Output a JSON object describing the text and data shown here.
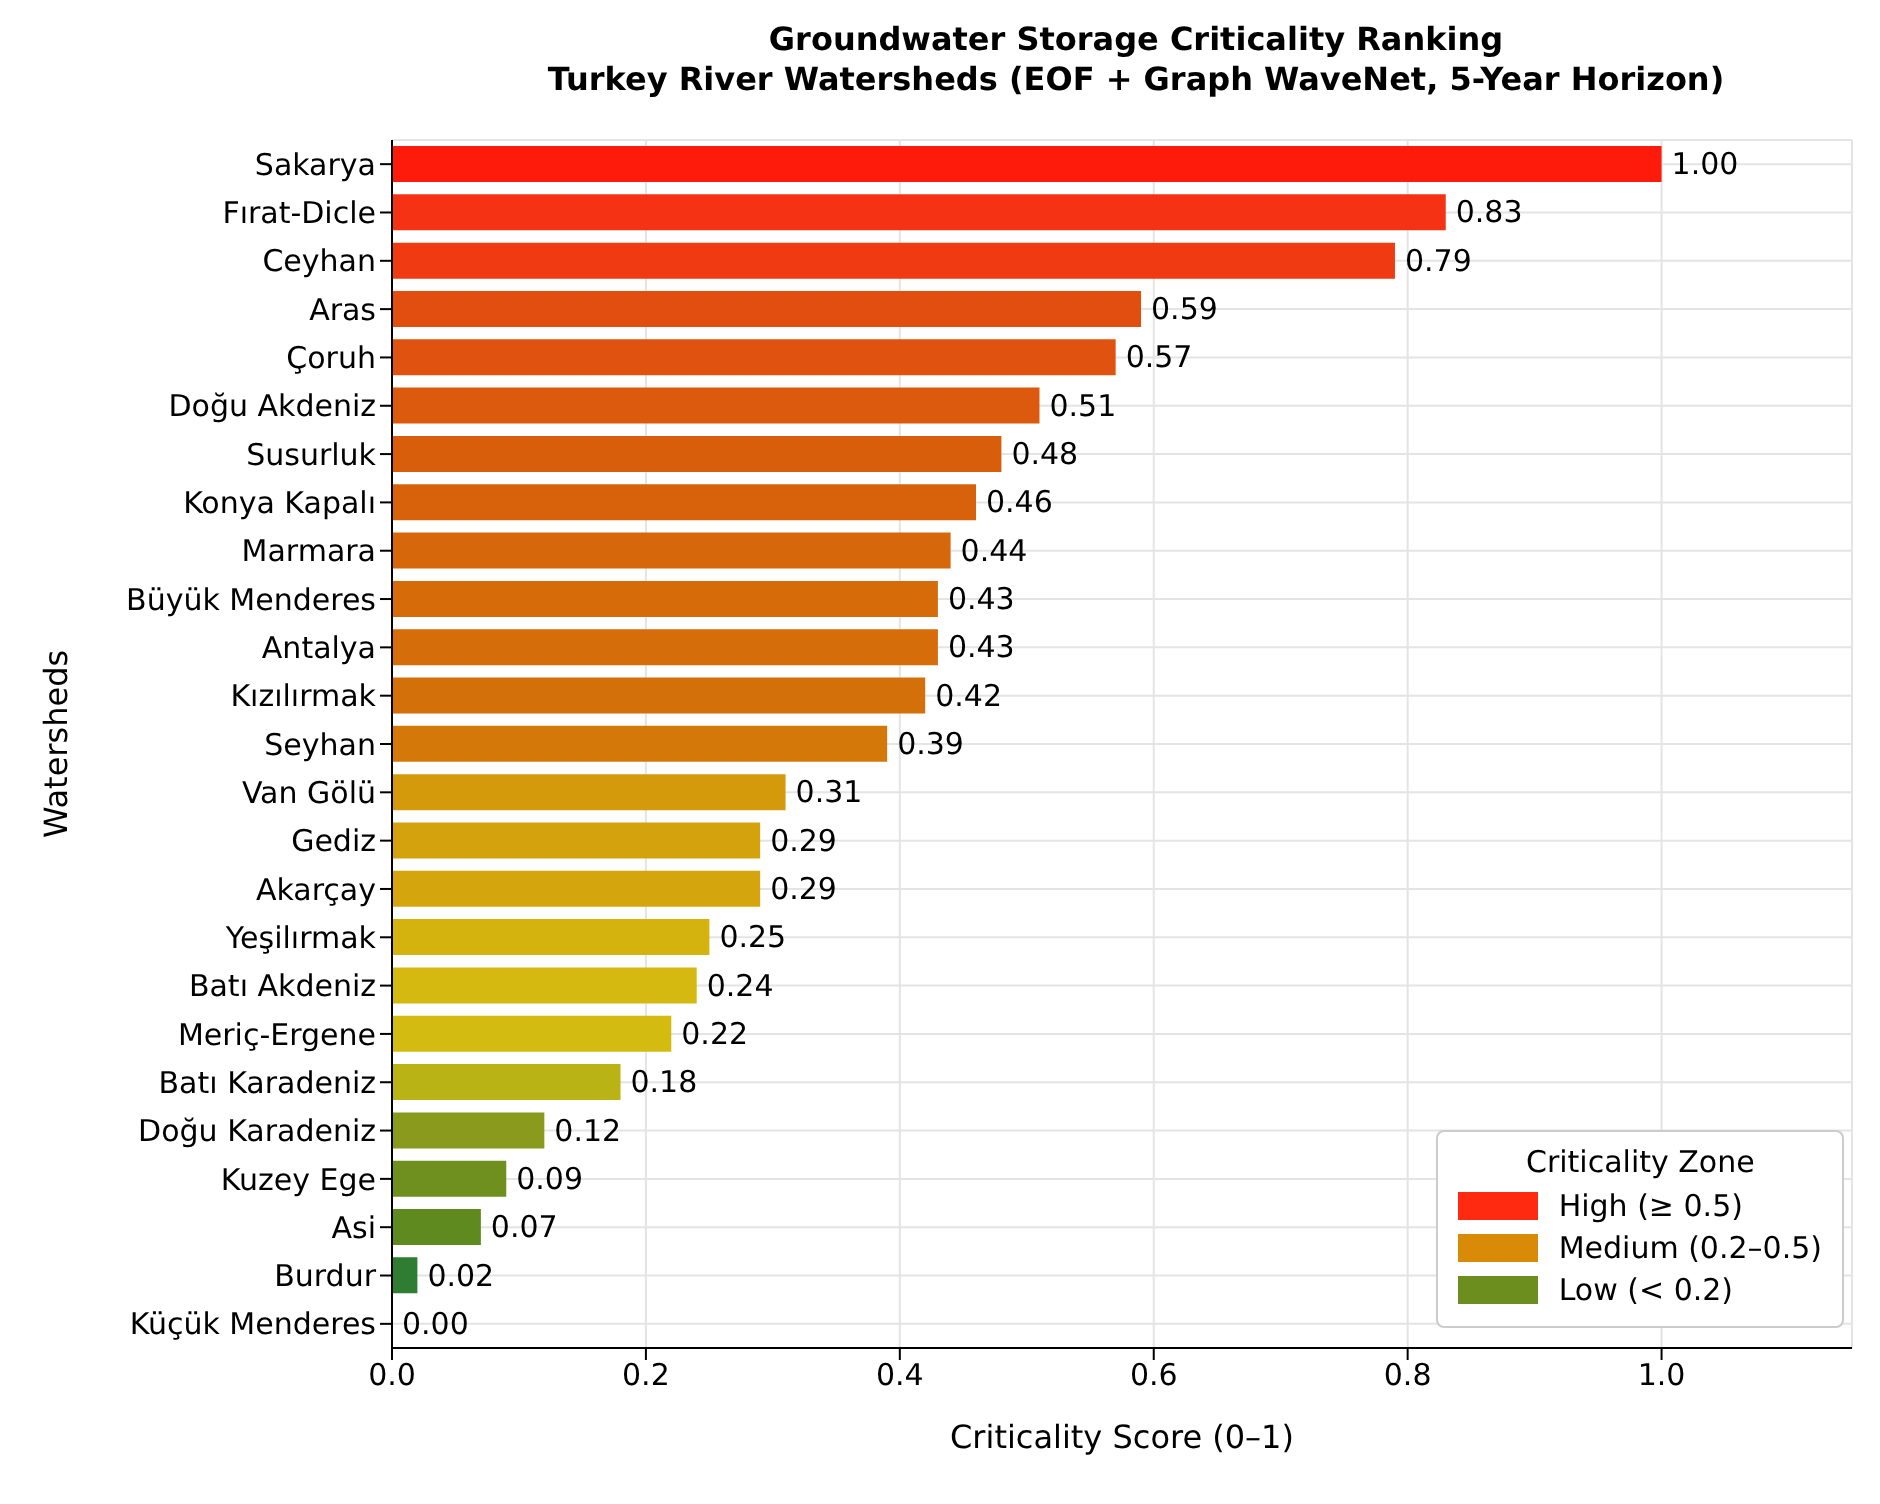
{
  "chart_data": {
    "type": "bar",
    "orientation": "horizontal",
    "stacked": true,
    "title": "Groundwater Storage Criticality Ranking",
    "subtitle": "Turkey River Watersheds (EOF + Graph WaveNet, 5-Year Horizon)",
    "xlabel": "Criticality Score (0–1)",
    "ylabel": "Watersheds",
    "legend_title": "Criticality Zone",
    "legend": "bottom right",
    "grid": true,
    "categories": [
      "Sakarya",
      "Fırat-Dicle",
      "Ceyhan",
      "Aras",
      "Çoruh",
      "Doğu Akdeniz",
      "Susurluk",
      "Konya Kapalı",
      "Marmara",
      "Büyük Menderes",
      "Antalya",
      "Kızılırmak",
      "Seyhan",
      "Van Gölü",
      "Gediz",
      "Akarçay",
      "Yeşilırmak",
      "Batı Akdeniz",
      "Meriç-Ergene",
      "Batı Karadeniz",
      "Doğu Karadeniz",
      "Kuzey Ege",
      "Asi",
      "Burdur",
      "Küçük Menderes"
    ],
    "xlim": [
      0,
      1.15
    ],
    "xticks": [
      {
        "value": 0,
        "label": "0.0"
      },
      {
        "value": 0.2,
        "label": "0.2"
      },
      {
        "value": 0.4,
        "label": "0.4"
      },
      {
        "value": 0.6,
        "label": "0.6"
      },
      {
        "value": 0.8,
        "label": "0.8"
      },
      {
        "value": 1,
        "label": "1.0"
      }
    ],
    "series": [
      {
        "name": "High (≥ 0.5)",
        "color": "#ff2a10",
        "values": [
          1.0,
          0.83,
          0.79,
          0.59,
          0.57,
          0.51,
          null,
          null,
          null,
          null,
          null,
          null,
          null,
          null,
          null,
          null,
          null,
          null,
          null,
          null,
          null,
          null,
          null,
          null,
          null
        ],
        "value_labels": [
          "1.00",
          "0.83",
          "0.79",
          "0.59",
          "0.57",
          "0.51",
          null,
          null,
          null,
          null,
          null,
          null,
          null,
          null,
          null,
          null,
          null,
          null,
          null,
          null,
          null,
          null,
          null,
          null,
          null
        ],
        "colors": [
          "#fe1b0c",
          "#f53314",
          "#ef3a12",
          "#e14e0f",
          "#e0520f",
          "#dc5a0d",
          null,
          null,
          null,
          null,
          null,
          null,
          null,
          null,
          null,
          null,
          null,
          null,
          null,
          null,
          null,
          null,
          null,
          null,
          null
        ]
      },
      {
        "name": "Medium (0.2–0.5)",
        "color": "#d98a06",
        "values": [
          null,
          null,
          null,
          null,
          null,
          null,
          0.48,
          0.46,
          0.44,
          0.43,
          0.43,
          0.42,
          0.39,
          0.31,
          0.29,
          0.29,
          0.25,
          0.24,
          0.22,
          null,
          null,
          null,
          null,
          null,
          null
        ],
        "value_labels": [
          null,
          null,
          null,
          null,
          null,
          null,
          "0.48",
          "0.46",
          "0.44",
          "0.43",
          "0.43",
          "0.42",
          "0.39",
          "0.31",
          "0.29",
          "0.29",
          "0.25",
          "0.24",
          "0.22",
          null,
          null,
          null,
          null,
          null,
          null
        ],
        "colors": [
          null,
          null,
          null,
          null,
          null,
          null,
          "#d95e0c",
          "#d8620b",
          "#d6680b",
          "#d66b0a",
          "#d56d0a",
          "#d4700a",
          "#d47909",
          "#d49a0c",
          "#d4a20c",
          "#d4a50d",
          "#d4b30f",
          "#d6b910",
          "#d4bb12",
          null,
          null,
          null,
          null,
          null,
          null
        ]
      },
      {
        "name": "Low (< 0.2)",
        "color": "#6b8e1e",
        "values": [
          null,
          null,
          null,
          null,
          null,
          null,
          null,
          null,
          null,
          null,
          null,
          null,
          null,
          null,
          null,
          null,
          null,
          null,
          null,
          0.18,
          0.12,
          0.09,
          0.07,
          0.02,
          0.0
        ],
        "value_labels": [
          null,
          null,
          null,
          null,
          null,
          null,
          null,
          null,
          null,
          null,
          null,
          null,
          null,
          null,
          null,
          null,
          null,
          null,
          null,
          "0.18",
          "0.12",
          "0.09",
          "0.07",
          "0.02",
          "0.00"
        ],
        "colors": [
          null,
          null,
          null,
          null,
          null,
          null,
          null,
          null,
          null,
          null,
          null,
          null,
          null,
          null,
          null,
          null,
          null,
          null,
          null,
          "#b9b316",
          "#8a9a1c",
          "#6f901e",
          "#5e8a20",
          "#2e7d32",
          "#2a6e2a"
        ]
      }
    ]
  }
}
